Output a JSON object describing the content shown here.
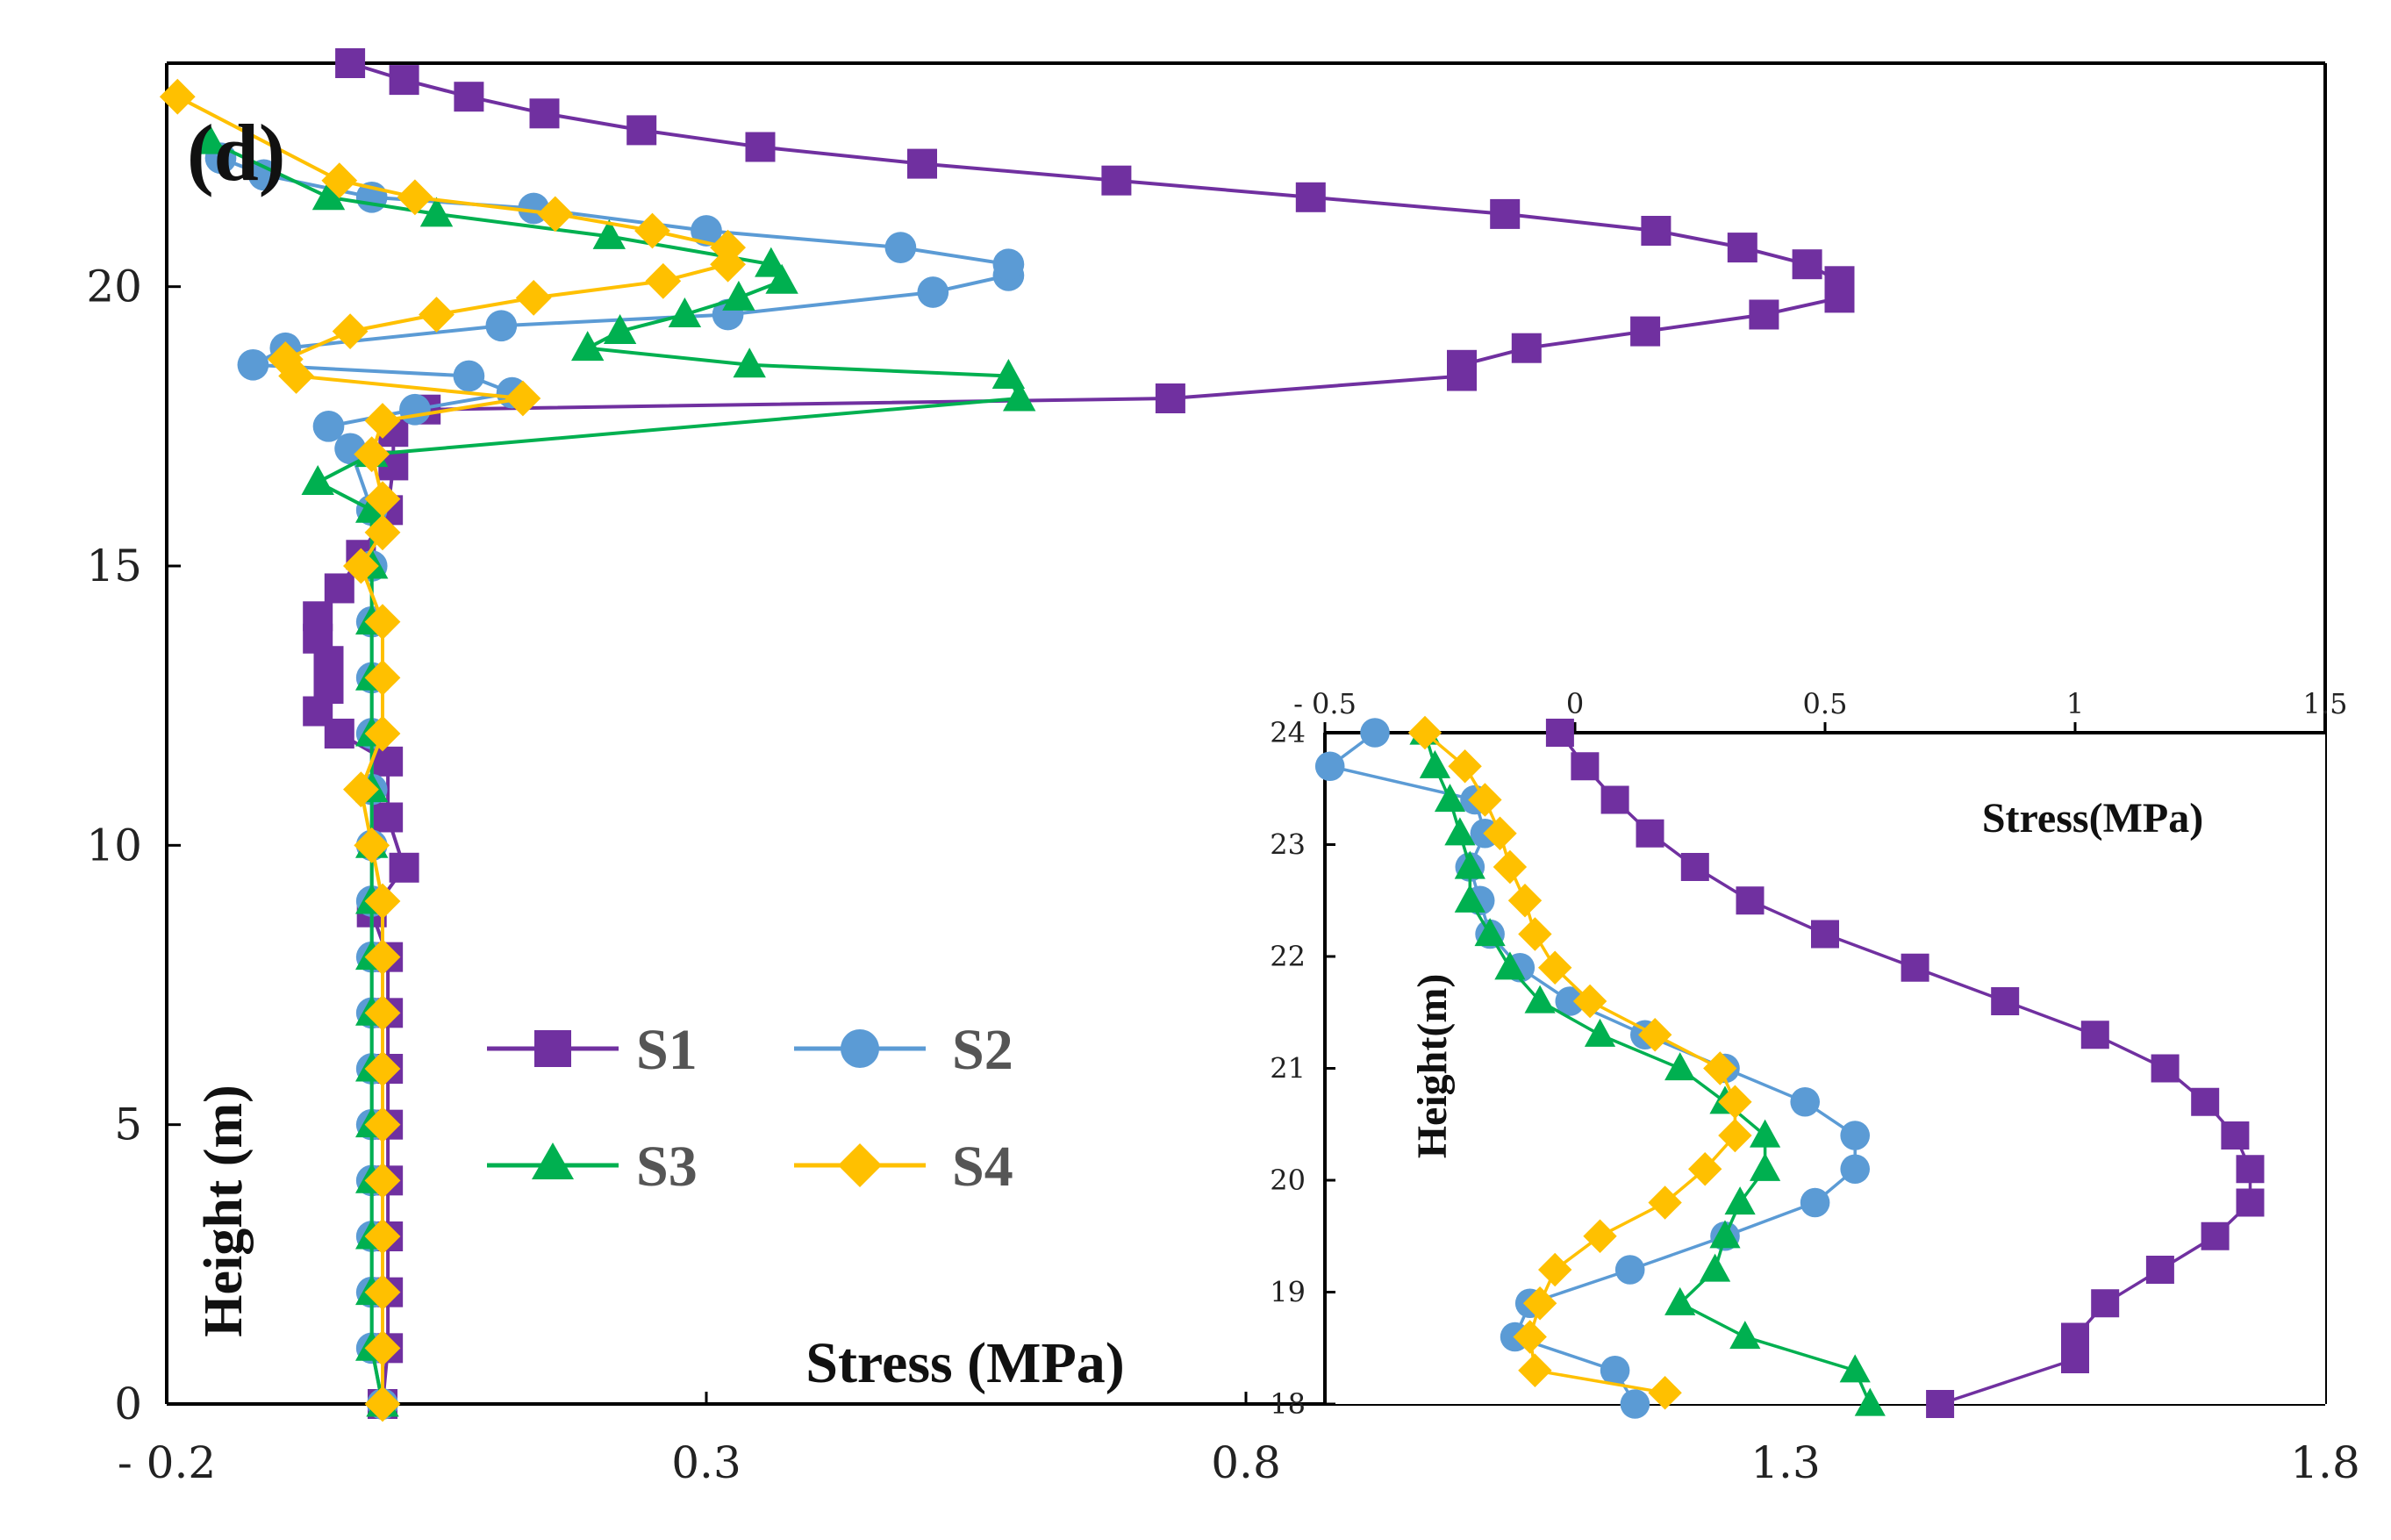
{
  "panel_label": "(d)",
  "colors": {
    "S1": "#7030a0",
    "S2": "#5b9bd5",
    "S3": "#00b050",
    "S4": "#ffc000"
  },
  "chart_data": [
    {
      "type": "line",
      "role": "main",
      "xlabel": "Stress (MPa)",
      "ylabel": "Height (m)",
      "xlim": [
        -0.2,
        1.8
      ],
      "ylim": [
        0,
        24
      ],
      "xticks": [
        -0.2,
        0.3,
        0.8,
        1.3,
        1.8
      ],
      "xtick_labels": [
        "- 0.2",
        "0.3",
        "0.8",
        "1.3",
        "1.8"
      ],
      "yticks": [
        0,
        5,
        10,
        15,
        20
      ],
      "ytick_labels": [
        "0",
        "5",
        "10",
        "15",
        "20"
      ],
      "legend_position": "center-left",
      "series": [
        {
          "name": "S1",
          "marker": "square",
          "color": "#7030a0",
          "points": [
            [
              0.0,
              0
            ],
            [
              0.005,
              1
            ],
            [
              0.005,
              2
            ],
            [
              0.005,
              3
            ],
            [
              0.005,
              4
            ],
            [
              0.005,
              5
            ],
            [
              0.005,
              6
            ],
            [
              0.005,
              7
            ],
            [
              0.005,
              8
            ],
            [
              -0.01,
              8.8
            ],
            [
              0.02,
              9.6
            ],
            [
              0.005,
              10.5
            ],
            [
              0.005,
              11.5
            ],
            [
              -0.04,
              12.0
            ],
            [
              -0.06,
              12.4
            ],
            [
              -0.05,
              12.8
            ],
            [
              -0.05,
              13.3
            ],
            [
              -0.06,
              13.7
            ],
            [
              -0.06,
              14.1
            ],
            [
              -0.04,
              14.6
            ],
            [
              -0.02,
              15.2
            ],
            [
              0.005,
              16.0
            ],
            [
              0.01,
              16.8
            ],
            [
              0.01,
              17.4
            ],
            [
              0.04,
              17.8
            ],
            [
              0.73,
              18.0
            ],
            [
              1.0,
              18.4
            ],
            [
              1.0,
              18.6
            ],
            [
              1.06,
              18.9
            ],
            [
              1.17,
              19.2
            ],
            [
              1.28,
              19.5
            ],
            [
              1.35,
              19.8
            ],
            [
              1.35,
              20.1
            ],
            [
              1.32,
              20.4
            ],
            [
              1.26,
              20.7
            ],
            [
              1.18,
              21.0
            ],
            [
              1.04,
              21.3
            ],
            [
              0.86,
              21.6
            ],
            [
              0.68,
              21.9
            ],
            [
              0.5,
              22.2
            ],
            [
              0.35,
              22.5
            ],
            [
              0.24,
              22.8
            ],
            [
              0.15,
              23.1
            ],
            [
              0.08,
              23.4
            ],
            [
              0.02,
              23.7
            ],
            [
              -0.03,
              24.0
            ]
          ]
        },
        {
          "name": "S2",
          "marker": "circle",
          "color": "#5b9bd5",
          "points": [
            [
              0.0,
              0
            ],
            [
              -0.01,
              1
            ],
            [
              -0.01,
              2
            ],
            [
              -0.01,
              3
            ],
            [
              -0.01,
              4
            ],
            [
              -0.01,
              5
            ],
            [
              -0.01,
              6
            ],
            [
              -0.01,
              7
            ],
            [
              -0.01,
              8
            ],
            [
              -0.01,
              9
            ],
            [
              -0.01,
              10
            ],
            [
              -0.01,
              11
            ],
            [
              -0.01,
              12
            ],
            [
              -0.01,
              13
            ],
            [
              -0.01,
              14
            ],
            [
              -0.01,
              15
            ],
            [
              -0.01,
              16
            ],
            [
              -0.03,
              17.1
            ],
            [
              -0.05,
              17.5
            ],
            [
              0.03,
              17.8
            ],
            [
              0.12,
              18.1
            ],
            [
              0.08,
              18.4
            ],
            [
              -0.12,
              18.6
            ],
            [
              -0.09,
              18.9
            ],
            [
              0.11,
              19.3
            ],
            [
              0.32,
              19.5
            ],
            [
              0.51,
              19.9
            ],
            [
              0.58,
              20.2
            ],
            [
              0.58,
              20.4
            ],
            [
              0.48,
              20.7
            ],
            [
              0.3,
              21.0
            ],
            [
              0.14,
              21.4
            ],
            [
              -0.01,
              21.6
            ],
            [
              -0.11,
              22.0
            ],
            [
              -0.15,
              22.3
            ]
          ]
        },
        {
          "name": "S3",
          "marker": "triangle",
          "color": "#00b050",
          "points": [
            [
              0.0,
              0
            ],
            [
              -0.01,
              1
            ],
            [
              -0.01,
              2
            ],
            [
              -0.01,
              3
            ],
            [
              -0.01,
              4
            ],
            [
              -0.01,
              5
            ],
            [
              -0.01,
              6
            ],
            [
              -0.01,
              7
            ],
            [
              -0.01,
              8
            ],
            [
              -0.01,
              9
            ],
            [
              -0.01,
              10
            ],
            [
              -0.01,
              11
            ],
            [
              -0.01,
              12
            ],
            [
              -0.01,
              13
            ],
            [
              -0.01,
              14
            ],
            [
              -0.01,
              15
            ],
            [
              -0.01,
              16
            ],
            [
              -0.06,
              16.5
            ],
            [
              -0.01,
              17.0
            ],
            [
              0.59,
              18.0
            ],
            [
              0.58,
              18.4
            ],
            [
              0.34,
              18.6
            ],
            [
              0.19,
              18.9
            ],
            [
              0.22,
              19.2
            ],
            [
              0.28,
              19.5
            ],
            [
              0.33,
              19.8
            ],
            [
              0.37,
              20.1
            ],
            [
              0.36,
              20.4
            ],
            [
              0.21,
              20.9
            ],
            [
              0.05,
              21.3
            ],
            [
              -0.05,
              21.6
            ],
            [
              -0.16,
              22.6
            ]
          ]
        },
        {
          "name": "S4",
          "marker": "diamond",
          "color": "#ffc000",
          "points": [
            [
              0.0,
              0
            ],
            [
              0.0,
              1
            ],
            [
              0.0,
              2
            ],
            [
              0.0,
              3
            ],
            [
              0.0,
              4
            ],
            [
              0.0,
              5
            ],
            [
              0.0,
              6
            ],
            [
              0.0,
              7
            ],
            [
              0.0,
              8
            ],
            [
              0.0,
              9
            ],
            [
              -0.01,
              10
            ],
            [
              -0.02,
              11
            ],
            [
              0.0,
              12
            ],
            [
              0.0,
              13
            ],
            [
              0.0,
              14
            ],
            [
              -0.02,
              15
            ],
            [
              0.0,
              15.6
            ],
            [
              0.0,
              16.2
            ],
            [
              -0.01,
              17.0
            ],
            [
              0.0,
              17.6
            ],
            [
              0.13,
              18.0
            ],
            [
              -0.08,
              18.4
            ],
            [
              -0.09,
              18.7
            ],
            [
              -0.03,
              19.2
            ],
            [
              0.05,
              19.5
            ],
            [
              0.14,
              19.8
            ],
            [
              0.26,
              20.1
            ],
            [
              0.32,
              20.4
            ],
            [
              0.32,
              20.7
            ],
            [
              0.25,
              21.0
            ],
            [
              0.16,
              21.3
            ],
            [
              0.03,
              21.6
            ],
            [
              -0.04,
              21.9
            ],
            [
              -0.19,
              23.4
            ]
          ]
        }
      ]
    },
    {
      "type": "line",
      "role": "inset",
      "xlabel": "Stress(MPa)",
      "ylabel": "Height(m)",
      "xlim": [
        -0.5,
        1.5
      ],
      "ylim": [
        18,
        24
      ],
      "xticks": [
        -0.5,
        0,
        0.5,
        1,
        1.5
      ],
      "xtick_labels": [
        "- 0.5",
        "0",
        "0.5",
        "1",
        "1.5"
      ],
      "yticks": [
        18,
        19,
        20,
        21,
        22,
        23,
        24
      ],
      "ytick_labels": [
        "18",
        "19",
        "20",
        "21",
        "22",
        "23",
        "24"
      ],
      "x_axis_position": "top",
      "series": [
        {
          "name": "S1",
          "marker": "square",
          "color": "#7030a0",
          "points": [
            [
              0.73,
              18.0
            ],
            [
              1.0,
              18.4
            ],
            [
              1.0,
              18.6
            ],
            [
              1.06,
              18.9
            ],
            [
              1.17,
              19.2
            ],
            [
              1.28,
              19.5
            ],
            [
              1.35,
              19.8
            ],
            [
              1.35,
              20.1
            ],
            [
              1.32,
              20.4
            ],
            [
              1.26,
              20.7
            ],
            [
              1.18,
              21.0
            ],
            [
              1.04,
              21.3
            ],
            [
              0.86,
              21.6
            ],
            [
              0.68,
              21.9
            ],
            [
              0.5,
              22.2
            ],
            [
              0.35,
              22.5
            ],
            [
              0.24,
              22.8
            ],
            [
              0.15,
              23.1
            ],
            [
              0.08,
              23.4
            ],
            [
              0.02,
              23.7
            ],
            [
              -0.03,
              24.0
            ]
          ]
        },
        {
          "name": "S2",
          "marker": "circle",
          "color": "#5b9bd5",
          "points": [
            [
              0.12,
              18.0
            ],
            [
              0.08,
              18.3
            ],
            [
              -0.12,
              18.6
            ],
            [
              -0.09,
              18.9
            ],
            [
              0.11,
              19.2
            ],
            [
              0.3,
              19.5
            ],
            [
              0.48,
              19.8
            ],
            [
              0.56,
              20.1
            ],
            [
              0.56,
              20.4
            ],
            [
              0.46,
              20.7
            ],
            [
              0.3,
              21.0
            ],
            [
              0.14,
              21.3
            ],
            [
              -0.01,
              21.6
            ],
            [
              -0.11,
              21.9
            ],
            [
              -0.17,
              22.2
            ],
            [
              -0.19,
              22.5
            ],
            [
              -0.21,
              22.8
            ],
            [
              -0.18,
              23.1
            ],
            [
              -0.2,
              23.4
            ],
            [
              -0.49,
              23.7
            ],
            [
              -0.4,
              24.0
            ]
          ]
        },
        {
          "name": "S3",
          "marker": "triangle",
          "color": "#00b050",
          "points": [
            [
              0.59,
              18.0
            ],
            [
              0.56,
              18.3
            ],
            [
              0.34,
              18.6
            ],
            [
              0.21,
              18.9
            ],
            [
              0.28,
              19.2
            ],
            [
              0.3,
              19.5
            ],
            [
              0.33,
              19.8
            ],
            [
              0.38,
              20.1
            ],
            [
              0.38,
              20.4
            ],
            [
              0.3,
              20.7
            ],
            [
              0.21,
              21.0
            ],
            [
              0.05,
              21.3
            ],
            [
              -0.07,
              21.6
            ],
            [
              -0.13,
              21.9
            ],
            [
              -0.17,
              22.2
            ],
            [
              -0.21,
              22.5
            ],
            [
              -0.21,
              22.8
            ],
            [
              -0.23,
              23.1
            ],
            [
              -0.25,
              23.4
            ],
            [
              -0.28,
              23.7
            ],
            [
              -0.3,
              24.0
            ]
          ]
        },
        {
          "name": "S4",
          "marker": "diamond",
          "color": "#ffc000",
          "points": [
            [
              0.18,
              18.1
            ],
            [
              -0.08,
              18.3
            ],
            [
              -0.09,
              18.6
            ],
            [
              -0.07,
              18.9
            ],
            [
              -0.04,
              19.2
            ],
            [
              0.05,
              19.5
            ],
            [
              0.18,
              19.8
            ],
            [
              0.26,
              20.1
            ],
            [
              0.32,
              20.4
            ],
            [
              0.32,
              20.7
            ],
            [
              0.29,
              21.0
            ],
            [
              0.16,
              21.3
            ],
            [
              0.03,
              21.6
            ],
            [
              -0.04,
              21.9
            ],
            [
              -0.08,
              22.2
            ],
            [
              -0.1,
              22.5
            ],
            [
              -0.13,
              22.8
            ],
            [
              -0.15,
              23.1
            ],
            [
              -0.18,
              23.4
            ],
            [
              -0.22,
              23.7
            ],
            [
              -0.3,
              24.0
            ]
          ]
        }
      ]
    }
  ]
}
